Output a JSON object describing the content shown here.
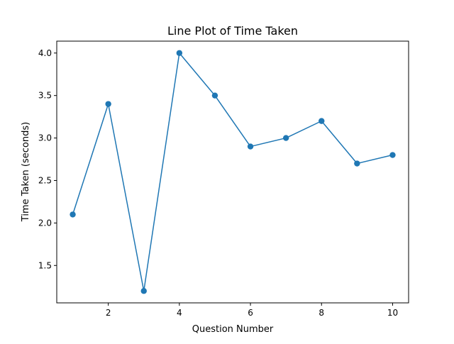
{
  "chart_data": {
    "type": "line",
    "title": "Line Plot of Time Taken",
    "xlabel": "Question Number",
    "ylabel": "Time Taken (seconds)",
    "xlim": [
      0.55,
      10.45
    ],
    "ylim": [
      1.06,
      4.14
    ],
    "xticks": [
      2,
      4,
      6,
      8,
      10
    ],
    "yticks": [
      1.5,
      2.0,
      2.5,
      3.0,
      3.5,
      4.0
    ],
    "xtick_labels": [
      "2",
      "4",
      "6",
      "8",
      "10"
    ],
    "ytick_labels": [
      "1.5",
      "2.0",
      "2.5",
      "3.0",
      "3.5",
      "4.0"
    ],
    "grid": false,
    "series": [
      {
        "color": "#1f77b4",
        "marker": "circle",
        "x": [
          1,
          2,
          3,
          4,
          5,
          6,
          7,
          8,
          9,
          10
        ],
        "y": [
          2.1,
          3.4,
          1.2,
          4.0,
          3.5,
          2.9,
          3.0,
          3.2,
          2.7,
          2.8
        ]
      }
    ]
  }
}
